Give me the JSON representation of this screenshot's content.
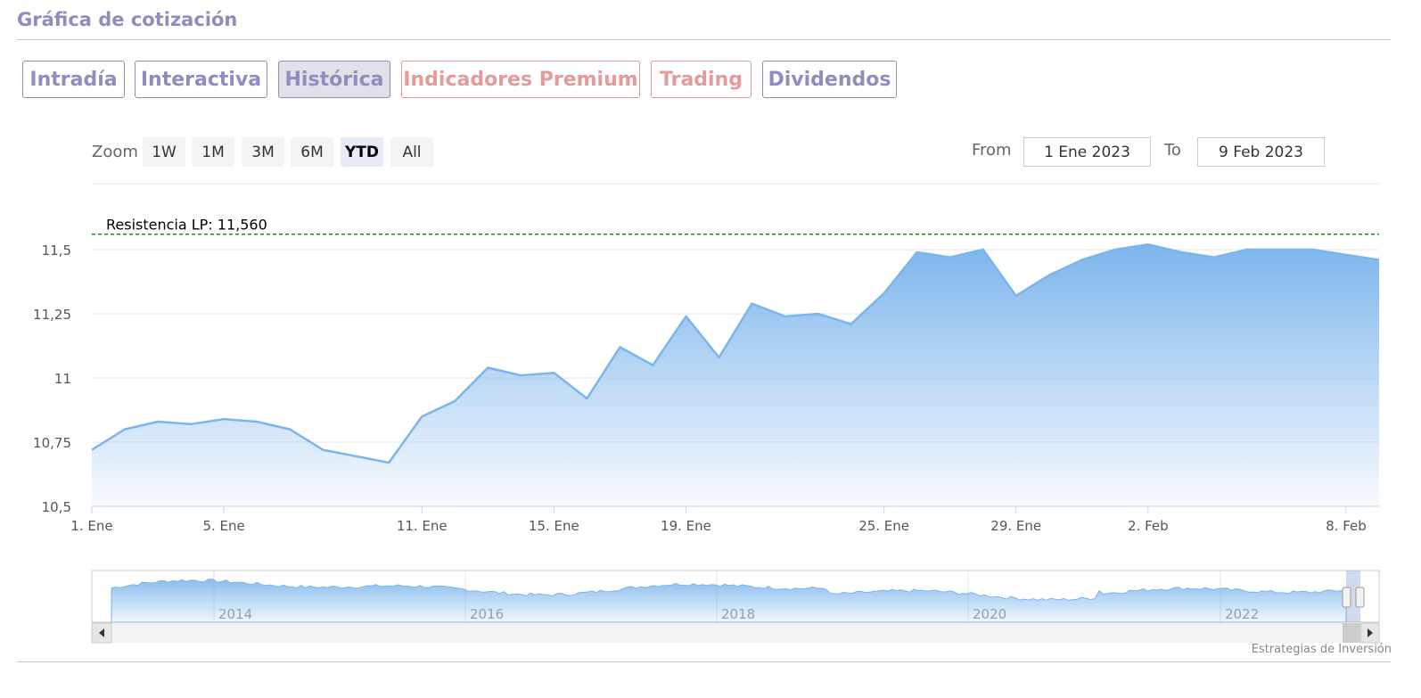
{
  "header": {
    "title": "Gráfica de cotización"
  },
  "tabs": [
    {
      "label": "Intradía",
      "active": false,
      "premium": false
    },
    {
      "label": "Interactiva",
      "active": false,
      "premium": false
    },
    {
      "label": "Histórica",
      "active": true,
      "premium": false
    },
    {
      "label": "Indicadores Premium",
      "active": false,
      "premium": true
    },
    {
      "label": "Trading",
      "active": false,
      "premium": true
    },
    {
      "label": "Dividendos",
      "active": false,
      "premium": false
    }
  ],
  "range_selector": {
    "zoom_label": "Zoom",
    "buttons": [
      "1W",
      "1M",
      "3M",
      "6M",
      "YTD",
      "All"
    ],
    "selected": "YTD",
    "from_label": "From",
    "from_value": "1 Ene 2023",
    "to_label": "To",
    "to_value": "9 Feb 2023"
  },
  "credits": "Estrategias de Inversión",
  "colors": {
    "accent": "#8f8cbf",
    "premium": "#e39b9b",
    "series": "#7cb5ec",
    "resistance": "#1f8a1f"
  },
  "chart_data": {
    "type": "area",
    "ylim": [
      10.5,
      11.5
    ],
    "yticks": [
      10.5,
      10.75,
      11,
      11.25,
      11.5
    ],
    "ytick_labels": [
      "10,5",
      "10,75",
      "11",
      "11,25",
      "11,5"
    ],
    "xlim": [
      "2023-01-01",
      "2023-02-09"
    ],
    "xticks": [
      "2023-01-01",
      "2023-01-05",
      "2023-01-11",
      "2023-01-15",
      "2023-01-19",
      "2023-01-25",
      "2023-01-29",
      "2023-02-02",
      "2023-02-08"
    ],
    "xtick_labels": [
      "1. Ene",
      "5. Ene",
      "11. Ene",
      "15. Ene",
      "19. Ene",
      "25. Ene",
      "29. Ene",
      "2. Feb",
      "8. Feb"
    ],
    "x": [
      "2023-01-01",
      "2023-01-02",
      "2023-01-03",
      "2023-01-04",
      "2023-01-05",
      "2023-01-06",
      "2023-01-07",
      "2023-01-08",
      "2023-01-10",
      "2023-01-11",
      "2023-01-12",
      "2023-01-13",
      "2023-01-14",
      "2023-01-15",
      "2023-01-16",
      "2023-01-17",
      "2023-01-18",
      "2023-01-19",
      "2023-01-20",
      "2023-01-21",
      "2023-01-22",
      "2023-01-23",
      "2023-01-24",
      "2023-01-25",
      "2023-01-26",
      "2023-01-27",
      "2023-01-28",
      "2023-01-29",
      "2023-01-30",
      "2023-01-31",
      "2023-02-01",
      "2023-02-02",
      "2023-02-03",
      "2023-02-04",
      "2023-02-05",
      "2023-02-06",
      "2023-02-07",
      "2023-02-08",
      "2023-02-09"
    ],
    "values": [
      10.72,
      10.8,
      10.83,
      10.82,
      10.84,
      10.83,
      10.8,
      10.72,
      10.67,
      10.85,
      10.91,
      11.04,
      11.01,
      11.02,
      10.92,
      11.12,
      11.05,
      11.24,
      11.08,
      11.29,
      11.24,
      11.25,
      11.21,
      11.33,
      11.49,
      11.47,
      11.5,
      11.32,
      11.4,
      11.46,
      11.5,
      11.52,
      11.49,
      11.47,
      11.5,
      11.5,
      11.5,
      11.48,
      11.46
    ],
    "annotations": [
      {
        "type": "hline",
        "y": 11.56,
        "label": "Resistencia LP: 11,560",
        "style": "dashed"
      }
    ],
    "navigator": {
      "xtick_labels": [
        "2014",
        "2016",
        "2018",
        "2020",
        "2022"
      ]
    },
    "grid": true,
    "legend": "none"
  }
}
